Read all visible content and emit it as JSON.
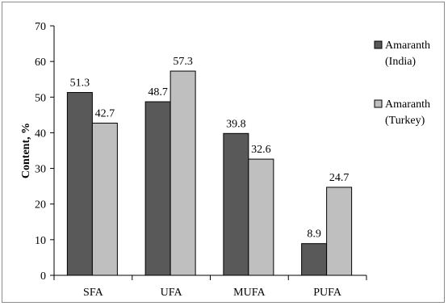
{
  "chart_data": {
    "type": "bar",
    "categories": [
      "SFA",
      "UFA",
      "MUFA",
      "PUFA"
    ],
    "series": [
      {
        "name": "Amaranth (India)",
        "legend_lines": [
          "Amaranth",
          "(India)"
        ],
        "values": [
          51.3,
          48.7,
          39.8,
          8.9
        ],
        "color": "#595959"
      },
      {
        "name": "Amaranth (Turkey)",
        "legend_lines": [
          "Amaranth",
          "(Turkey)"
        ],
        "values": [
          42.7,
          57.3,
          32.6,
          24.7
        ],
        "color": "#bfbfbf"
      }
    ],
    "value_labels": [
      [
        "51.3",
        "48.7",
        "39.8",
        "8.9"
      ],
      [
        "42.7",
        "57.3",
        "32.6",
        "24.7"
      ]
    ],
    "yticks": [
      "0",
      "10",
      "20",
      "30",
      "40",
      "50",
      "60",
      "70"
    ],
    "title": "",
    "xlabel": "",
    "ylabel": "Content, %",
    "ylim": [
      0,
      70
    ],
    "grid": false,
    "legend_position": "right"
  }
}
